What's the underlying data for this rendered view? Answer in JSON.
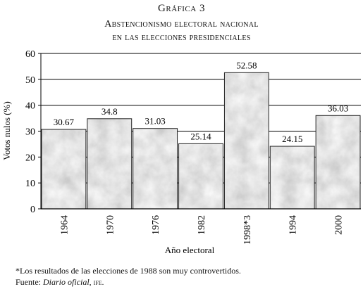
{
  "figure_label": "Gráfica 3",
  "title_line1": "Abstencionismo electoral nacional",
  "title_line2": "en las elecciones presidenciales",
  "footnote": "*Los resultados de las elecciones de 1988 son muy controvertidos.",
  "source": {
    "prefix": "Fuente:",
    "publication": "Diario oficial",
    "org": "ife."
  },
  "colors": {
    "bar_fill": "#d6d6d6",
    "bar_stroke": "#222222",
    "grid": "#000000"
  },
  "chart_data": {
    "type": "bar",
    "categories": [
      "1964",
      "1970",
      "1976",
      "1982",
      "1998*3",
      "1994",
      "2000"
    ],
    "values": [
      30.67,
      34.8,
      31.03,
      25.14,
      52.58,
      24.15,
      36.03
    ],
    "value_labels": [
      "30.67",
      "34.8",
      "31.03",
      "25.14",
      "52.58",
      "24.15",
      "36.03"
    ],
    "xlabel": "Año electoral",
    "ylabel": "Votos nulos (%)",
    "ylim": [
      0,
      60
    ],
    "yticks": [
      0,
      10,
      20,
      30,
      40,
      50,
      60
    ],
    "grid": true
  }
}
